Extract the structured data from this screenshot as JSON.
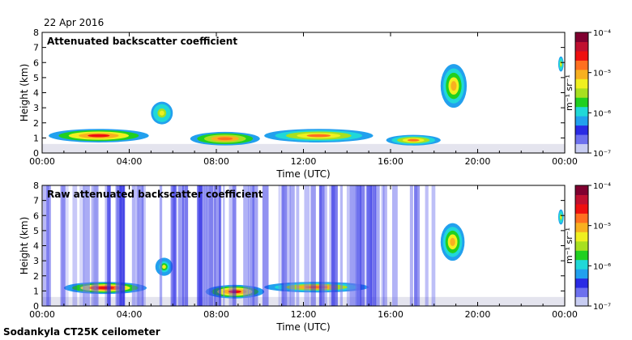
{
  "date": "22 Apr 2016",
  "footer": "Sodankyla CT25K ceilometer",
  "colors": {
    "colormap": [
      "#e4e4ee",
      "#c8cdf2",
      "#6d70ee",
      "#2a2ae4",
      "#22a0ee",
      "#20d8d8",
      "#20d020",
      "#a8e020",
      "#f0f020",
      "#f8b020",
      "#ff7020",
      "#ee1010",
      "#c01030",
      "#800030"
    ],
    "text": "#000000",
    "background": "#ffffff"
  },
  "chart_data": [
    {
      "type": "heatmap",
      "title": "Attenuated backscatter coefficient",
      "xlabel": "Time (UTC)",
      "ylabel": "Height (km)",
      "xlim": [
        0,
        24
      ],
      "ylim": [
        0,
        8
      ],
      "xticks": [
        "00:00",
        "04:00",
        "08:00",
        "12:00",
        "16:00",
        "20:00",
        "00:00"
      ],
      "yticks": [
        "0",
        "1",
        "2",
        "3",
        "4",
        "5",
        "6",
        "7",
        "8"
      ],
      "colorbar": {
        "label": "m⁻¹ sr⁻¹",
        "tick_labels": [
          "10⁻⁴",
          "10⁻⁵",
          "10⁻⁶",
          "10⁻⁷"
        ],
        "range_log10": [
          -7,
          -4
        ]
      },
      "features": [
        {
          "desc": "boundary layer aerosol",
          "t": [
            0.3,
            4.9
          ],
          "h": [
            0.7,
            1.6
          ],
          "log10": -5.3
        },
        {
          "desc": "boundary layer aerosol",
          "t": [
            6.8,
            10.0
          ],
          "h": [
            0.5,
            1.4
          ],
          "log10": -5.4
        },
        {
          "desc": "boundary layer aerosol",
          "t": [
            10.2,
            15.2
          ],
          "h": [
            0.7,
            1.6
          ],
          "log10": -5.6
        },
        {
          "desc": "low cloud",
          "t": [
            15.8,
            18.3
          ],
          "h": [
            0.5,
            1.2
          ],
          "log10": -5.6
        },
        {
          "desc": "cloud",
          "t": [
            5.0,
            6.0
          ],
          "h": [
            1.9,
            3.4
          ],
          "log10": -5.9
        },
        {
          "desc": "cloud",
          "t": [
            18.3,
            19.5
          ],
          "h": [
            3.0,
            5.9
          ],
          "log10": -5.7
        },
        {
          "desc": "cloud",
          "t": [
            23.7,
            23.95
          ],
          "h": [
            5.4,
            6.4
          ],
          "log10": -5.9
        }
      ]
    },
    {
      "type": "heatmap",
      "title": "Raw attenuated backscatter coefficient",
      "xlabel": "Time (UTC)",
      "ylabel": "Height (km)",
      "xlim": [
        0,
        24
      ],
      "ylim": [
        0,
        8
      ],
      "xticks": [
        "00:00",
        "04:00",
        "08:00",
        "12:00",
        "16:00",
        "20:00",
        "00:00"
      ],
      "yticks": [
        "0",
        "1",
        "2",
        "3",
        "4",
        "5",
        "6",
        "7",
        "8"
      ],
      "colorbar": {
        "label": "m⁻¹ sr⁻¹",
        "tick_labels": [
          "10⁻⁴",
          "10⁻⁵",
          "10⁻⁶",
          "10⁻⁷"
        ],
        "range_log10": [
          -7,
          -4
        ]
      },
      "features": [
        {
          "desc": "boundary layer aerosol",
          "t": [
            1.0,
            4.8
          ],
          "h": [
            0.8,
            1.6
          ],
          "log10": -5.2
        },
        {
          "desc": "boundary layer aerosol",
          "t": [
            7.5,
            10.2
          ],
          "h": [
            0.5,
            1.4
          ],
          "log10": -5.3
        },
        {
          "desc": "boundary layer aerosol",
          "t": [
            10.2,
            15.0
          ],
          "h": [
            0.9,
            1.6
          ],
          "log10": -5.5
        },
        {
          "desc": "cloud",
          "t": [
            18.3,
            19.4
          ],
          "h": [
            3.0,
            5.5
          ],
          "log10": -5.7
        },
        {
          "desc": "cloud",
          "t": [
            5.2,
            6.0
          ],
          "h": [
            2.0,
            3.2
          ],
          "log10": -6.0
        },
        {
          "desc": "cloud",
          "t": [
            23.7,
            23.95
          ],
          "h": [
            5.4,
            6.4
          ],
          "log10": -5.9
        },
        {
          "desc": "noise band",
          "t": [
            0.0,
            18.5
          ],
          "h": [
            0.0,
            8.0
          ],
          "log10": -6.6
        }
      ]
    }
  ]
}
